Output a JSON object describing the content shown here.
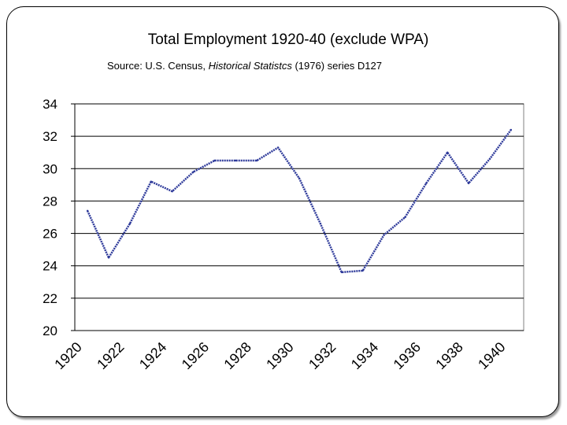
{
  "slide": {
    "title": "Total Employment 1920-40 (exclude WPA)",
    "subtitle_prefix": "Source: U.S. Census, ",
    "subtitle_italic": "Historical Statistcs",
    "subtitle_suffix": " (1976) series D127"
  },
  "chart_data": {
    "type": "line",
    "title": "Total Employment 1920-40 (exclude WPA)",
    "xlabel": "",
    "ylabel": "",
    "x": [
      1920.6,
      1921.6,
      1922.6,
      1923.6,
      1924.6,
      1925.6,
      1926.6,
      1927.6,
      1928.6,
      1929.6,
      1930.6,
      1931.6,
      1932.6,
      1933.6,
      1934.6,
      1935.6,
      1936.6,
      1937.6,
      1938.6,
      1939.6,
      1940.6
    ],
    "series": [
      {
        "name": "",
        "values": [
          27.4,
          24.5,
          26.6,
          29.2,
          28.6,
          29.8,
          30.5,
          30.5,
          30.5,
          31.3,
          29.4,
          26.6,
          23.6,
          23.7,
          25.9,
          27.0,
          29.1,
          31.0,
          29.1,
          30.6,
          32.4
        ]
      }
    ],
    "xlim": [
      1920,
      1941.2
    ],
    "ylim": [
      20,
      34
    ],
    "xticks": [
      "1920",
      "1922",
      "1924",
      "1926",
      "1928",
      "1930",
      "1932",
      "1934",
      "1936",
      "1938",
      "1940"
    ],
    "yticks": [
      "34",
      "32",
      "30",
      "28",
      "26",
      "24",
      "22",
      "20"
    ],
    "grid": true,
    "legend": "none",
    "colors": {
      "line": "#2e3a9a",
      "grid": "#000000",
      "plot_border": "#808080"
    }
  }
}
